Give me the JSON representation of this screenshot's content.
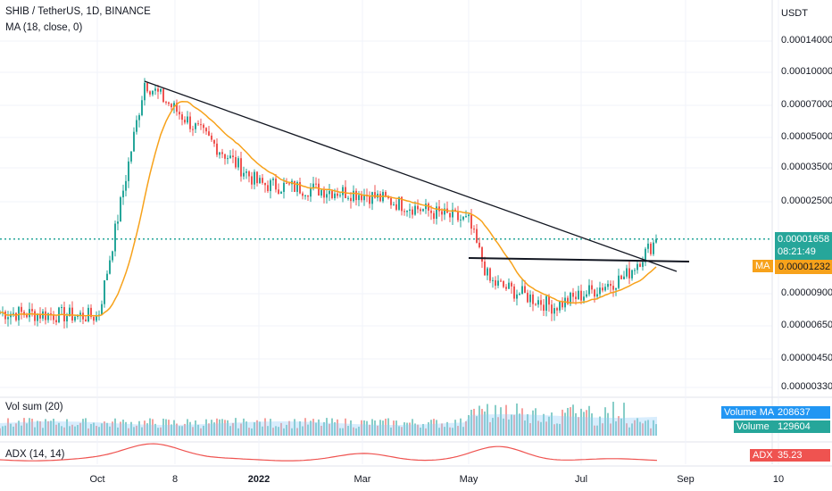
{
  "header": {
    "symbol_line": "SHIB / TetherUS, 1D, BINANCE",
    "ma_line": "MA (18, close, 0)"
  },
  "price_axis": {
    "currency": "USDT",
    "ticks": [
      "0.00014000",
      "0.00010000",
      "0.00007000",
      "0.00005000",
      "0.00003500",
      "0.00002500",
      "0.00000900",
      "0.00000650",
      "0.00000450",
      "0.00000330"
    ]
  },
  "last_price": {
    "value": "0.00001658",
    "countdown": "08:21:49",
    "color": "#26a69a"
  },
  "ma_tag": {
    "label": "MA",
    "value": "0.00001232",
    "color": "#f7a21b"
  },
  "volume_pane": {
    "title": "Vol sum (20)",
    "ma_label": "Volume MA",
    "ma_value": "208637",
    "vol_label": "Volume",
    "vol_value": "129604"
  },
  "adx_pane": {
    "title": "ADX (14, 14)",
    "label": "ADX",
    "value": "35.23",
    "color": "#ef5350"
  },
  "time_axis": [
    "Oct",
    "8",
    "2022",
    "Mar",
    "May",
    "Jul",
    "Sep",
    "10"
  ],
  "colors": {
    "up": "#26a69a",
    "down": "#ef5350",
    "ma": "#f7a21b",
    "trend": "#131722",
    "vol_ma": "#90caf9"
  },
  "chart_data": {
    "type": "line",
    "title": "SHIB / TetherUS, 1D, BINANCE",
    "scale": "log",
    "ylim": [
      3e-06,
      0.00016
    ],
    "x": [
      "2021-08",
      "2021-10-01",
      "2021-10-27",
      "2021-11",
      "2022-01",
      "2022-03",
      "2022-05",
      "2022-05-15",
      "2022-06-20",
      "2022-07-15",
      "2022-08-15"
    ],
    "series": [
      {
        "name": "close",
        "values": [
          7.5e-06,
          7.2e-06,
          9e-05,
          5e-05,
          3e-05,
          2.7e-05,
          2e-05,
          1.05e-05,
          8e-06,
          1.1e-05,
          1.66e-05
        ]
      },
      {
        "name": "MA (18, close, 0)",
        "values": [
          7e-06,
          7e-06,
          6e-05,
          5.5e-05,
          3.2e-05,
          2.6e-05,
          2.4e-05,
          1.4e-05,
          9e-06,
          1.05e-05,
          1.23e-05
        ]
      }
    ],
    "trendlines": [
      {
        "from": [
          "2021-10-27",
          9.2e-05
        ],
        "to": [
          "2022-08-20",
          1.28e-05
        ]
      },
      {
        "from": [
          "2022-05-05",
          1.35e-05
        ],
        "to": [
          "2022-08-20",
          1.3e-05
        ]
      }
    ],
    "last_price_line": 1.658e-05
  }
}
